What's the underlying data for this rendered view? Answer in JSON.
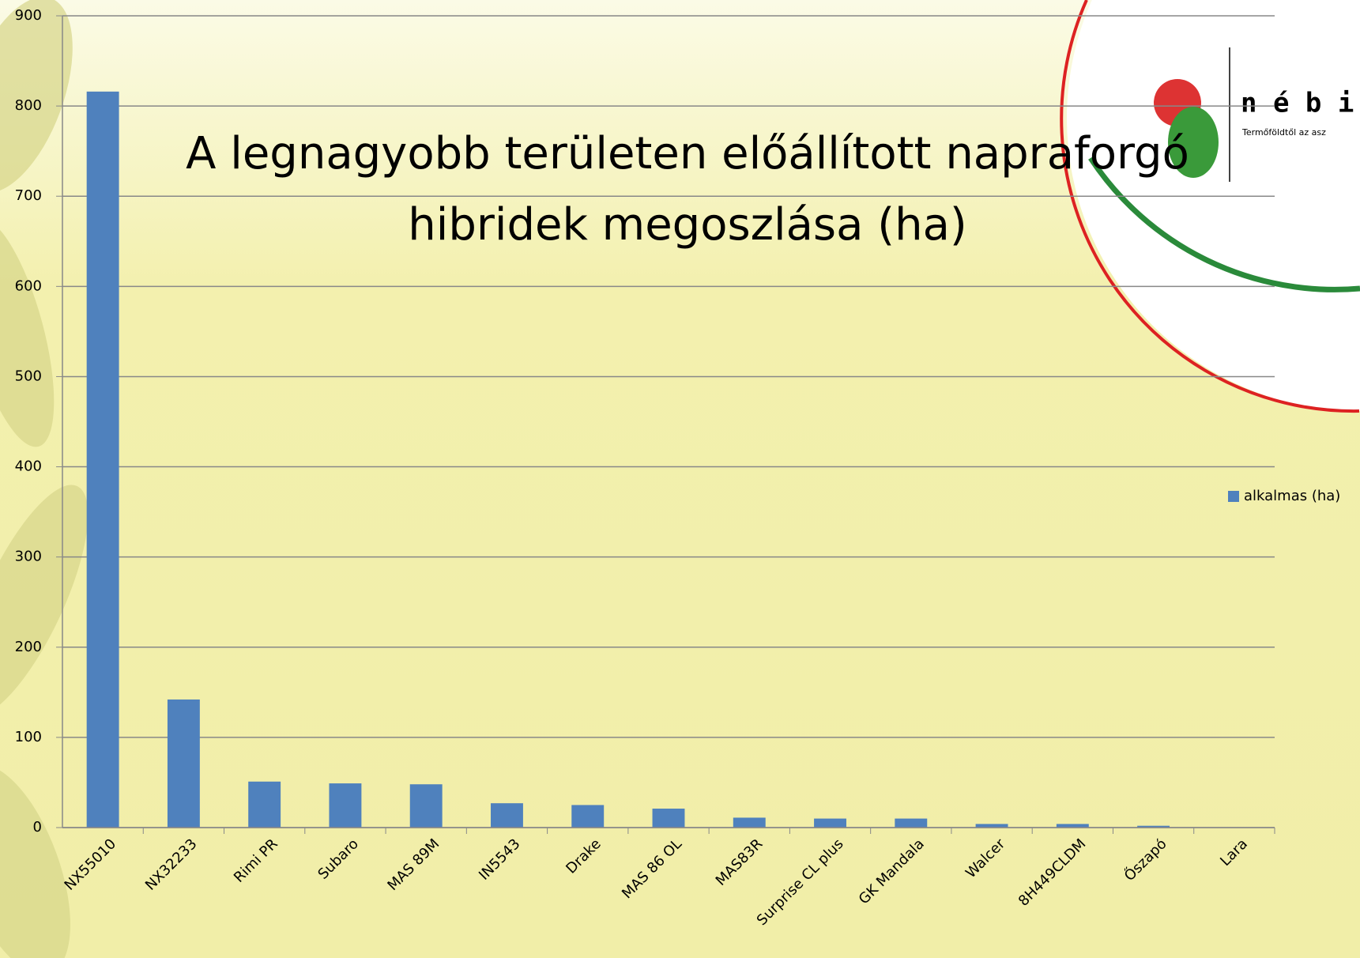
{
  "chart_data": {
    "type": "bar",
    "title": "A legnagyobb területen előállított napraforgó hibridek megoszlása (ha)",
    "categories": [
      "NX55010",
      "NX32233",
      "Rimi PR",
      "Subaro",
      "MAS 89M",
      "IN5543",
      "Drake",
      "MAS 86 OL",
      "MAS83R",
      "Surprise CL plus",
      "GK Mandala",
      "Walcer",
      "8H449CLDM",
      "Őszapó",
      "Lara"
    ],
    "series": [
      {
        "name": "alkalmas (ha)",
        "color": "#4f81bd",
        "values": [
          816,
          142,
          51,
          49,
          48,
          27,
          25,
          21,
          11,
          10,
          10,
          4,
          4,
          2,
          0
        ]
      }
    ],
    "ylim": [
      0,
      900
    ],
    "yticks": [
      0,
      100,
      200,
      300,
      400,
      500,
      600,
      700,
      800,
      900
    ],
    "grid": true,
    "legend": "right"
  },
  "logo": {
    "name": "n é b i",
    "slogan": "Termőföldtől az asz"
  }
}
